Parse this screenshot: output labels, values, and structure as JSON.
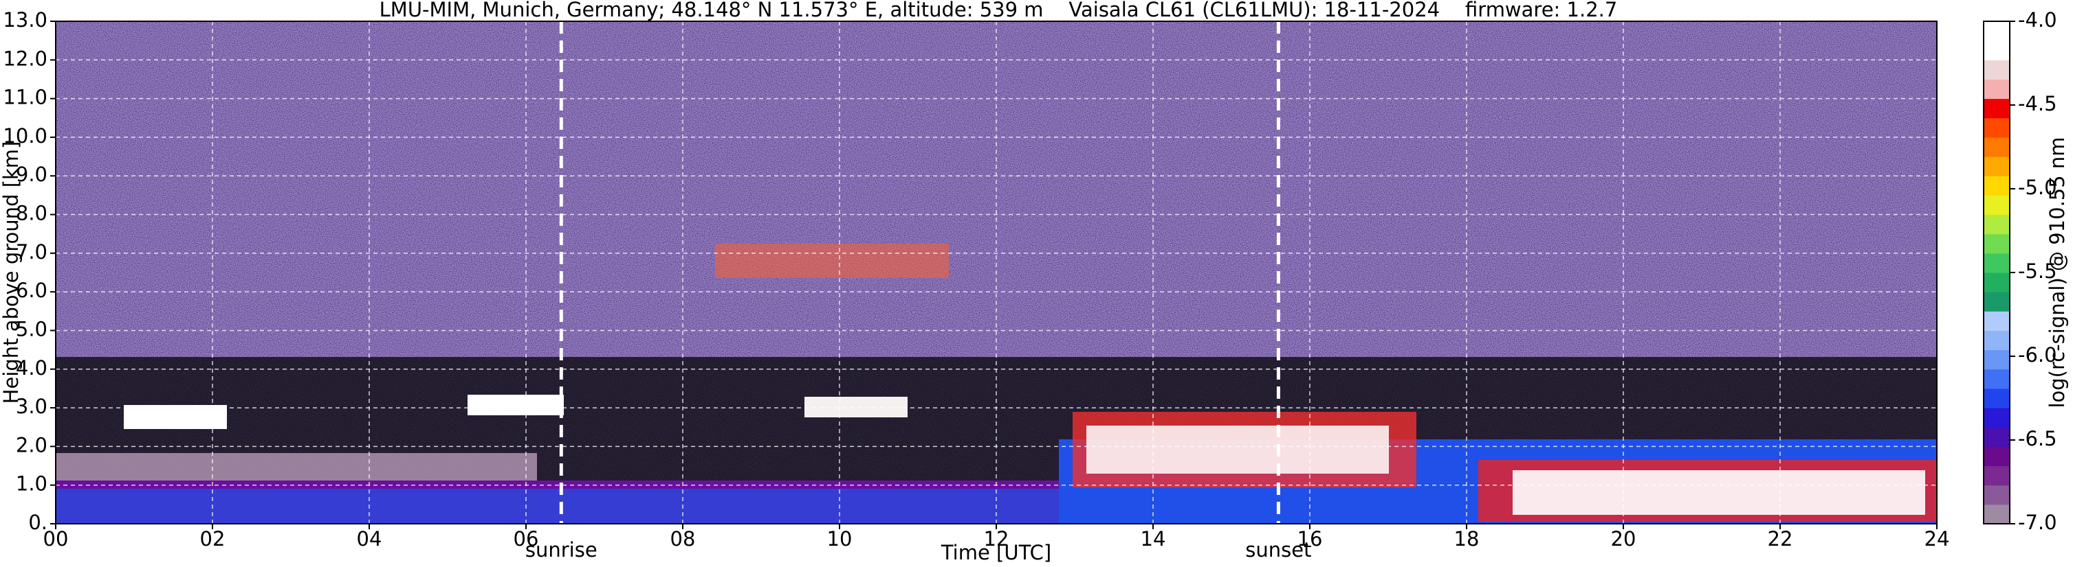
{
  "chart_data": {
    "type": "heatmap",
    "title": "LMU-MIM, Munich, Germany; 48.148° N 11.573° E, altitude: 539 m    Vaisala CL61 (CL61LMU): 18-11-2024    firmware: 1.2.7",
    "x_label": "Time [UTC]",
    "y_label": "Height above ground [km]",
    "xlim": [
      0,
      24
    ],
    "xticks": [
      {
        "value": 0,
        "label": "00"
      },
      {
        "value": 2,
        "label": "02"
      },
      {
        "value": 4,
        "label": "04"
      },
      {
        "value": 6,
        "label": "06"
      },
      {
        "value": 8,
        "label": "08"
      },
      10,
      12,
      14,
      16,
      18,
      20,
      22,
      24
    ],
    "ylim": [
      0,
      13
    ],
    "yticks": [
      {
        "value": 0,
        "label": "0."
      },
      {
        "value": 1,
        "label": "1.0"
      },
      {
        "value": 2,
        "label": "2.0"
      },
      {
        "value": 3,
        "label": "3.0"
      },
      {
        "value": 4,
        "label": "4.0"
      },
      {
        "value": 5,
        "label": "5.0"
      },
      {
        "value": 6,
        "label": "6.0"
      },
      {
        "value": 7,
        "label": "7.0"
      },
      {
        "value": 8,
        "label": "8.0"
      },
      {
        "value": 9,
        "label": "9.0"
      },
      {
        "value": 10,
        "label": "10.0"
      },
      {
        "value": 11,
        "label": "11.0"
      },
      {
        "value": 12,
        "label": "12.0"
      },
      {
        "value": 13,
        "label": "13.0"
      }
    ],
    "grid": true,
    "annotations": [
      {
        "text": "sunrise",
        "x": 6.45
      },
      {
        "text": "sunset",
        "x": 15.6
      }
    ],
    "colorbar": {
      "label": "log(rc-signal) @ 910.55 nm",
      "lim": [
        -7,
        -4
      ],
      "ticks": [
        {
          "value": -4,
          "label": "-4.0"
        },
        -4.5,
        {
          "value": -5,
          "label": "-5.0"
        },
        -5.5,
        {
          "value": -6,
          "label": "-6.0"
        },
        -6.5,
        {
          "value": -7,
          "label": "-7.0"
        }
      ],
      "colors": [
        "#9e8aa2",
        "#8a5a98",
        "#7a2a90",
        "#6a0a8c",
        "#4a10b0",
        "#2a18d8",
        "#2244ee",
        "#4070f4",
        "#6a96f6",
        "#90b4f8",
        "#b0ccfa",
        "#1a9a6a",
        "#20b060",
        "#40c860",
        "#70dc50",
        "#b0ec40",
        "#e8f020",
        "#ffd800",
        "#ffaa00",
        "#ff7a00",
        "#ff4a00",
        "#f00000",
        "#f4b0b0",
        "#eed6d6",
        "#ffffff",
        "#ffffff"
      ]
    }
  }
}
